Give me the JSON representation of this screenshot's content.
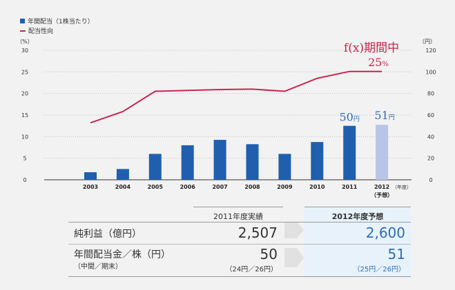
{
  "legend": {
    "bar_label": "年間配当（1株当たり）",
    "line_label": "配当性向"
  },
  "chart_data": {
    "type": "bar+line",
    "categories": [
      "2003",
      "2004",
      "2005",
      "2006",
      "2007",
      "2008",
      "2009",
      "2010",
      "2011",
      "2012"
    ],
    "category_extra": {
      "2012": "（予想）"
    },
    "xunit": "（年度）",
    "bar_series": {
      "name": "年間配当（1株当たり）",
      "unit": "（円）",
      "values": [
        7,
        10,
        24,
        32,
        37,
        33,
        24,
        35,
        50,
        51
      ],
      "ylim": [
        0,
        120
      ],
      "yticks": [
        0,
        20,
        40,
        60,
        80,
        100,
        120
      ],
      "forecast_index": 9,
      "color": "#1f5fae",
      "forecast_color": "#b9c5e8"
    },
    "line_series": {
      "name": "配当性向",
      "unit": "（%）",
      "values": [
        13.2,
        15.8,
        20.5,
        20.7,
        20.9,
        21.0,
        20.5,
        23.5,
        25.1,
        25.1
      ],
      "ylim": [
        0,
        30
      ],
      "yticks": [
        0,
        5,
        10,
        15,
        20,
        25,
        30
      ],
      "color": "#c8254f"
    },
    "annotations": {
      "line_top": "f(x)期間中",
      "line_top_value": "25",
      "line_top_unit": "%",
      "bar_2011_value": "50",
      "bar_2012_value": "51",
      "bar_unit": "円"
    }
  },
  "table": {
    "col_actual": "2011年度実績",
    "col_forecast": "2012年度予想",
    "rows": [
      {
        "label": "純利益（億円）",
        "sub": "",
        "actual": "2,507",
        "actual_sub": "",
        "forecast": "2,600",
        "forecast_sub": ""
      },
      {
        "label": "年間配当金／株（円）",
        "sub": "（中間／期末）",
        "actual": "50",
        "actual_sub": "（24円／26円）",
        "forecast": "51",
        "forecast_sub": "（25円／26円）"
      }
    ]
  },
  "colors": {
    "bar": "#1f5fae",
    "bar_forecast": "#b9c5e8",
    "line": "#c8254f",
    "forecast_text": "#2d6db5",
    "forecast_bg": "#e7f2fb"
  }
}
